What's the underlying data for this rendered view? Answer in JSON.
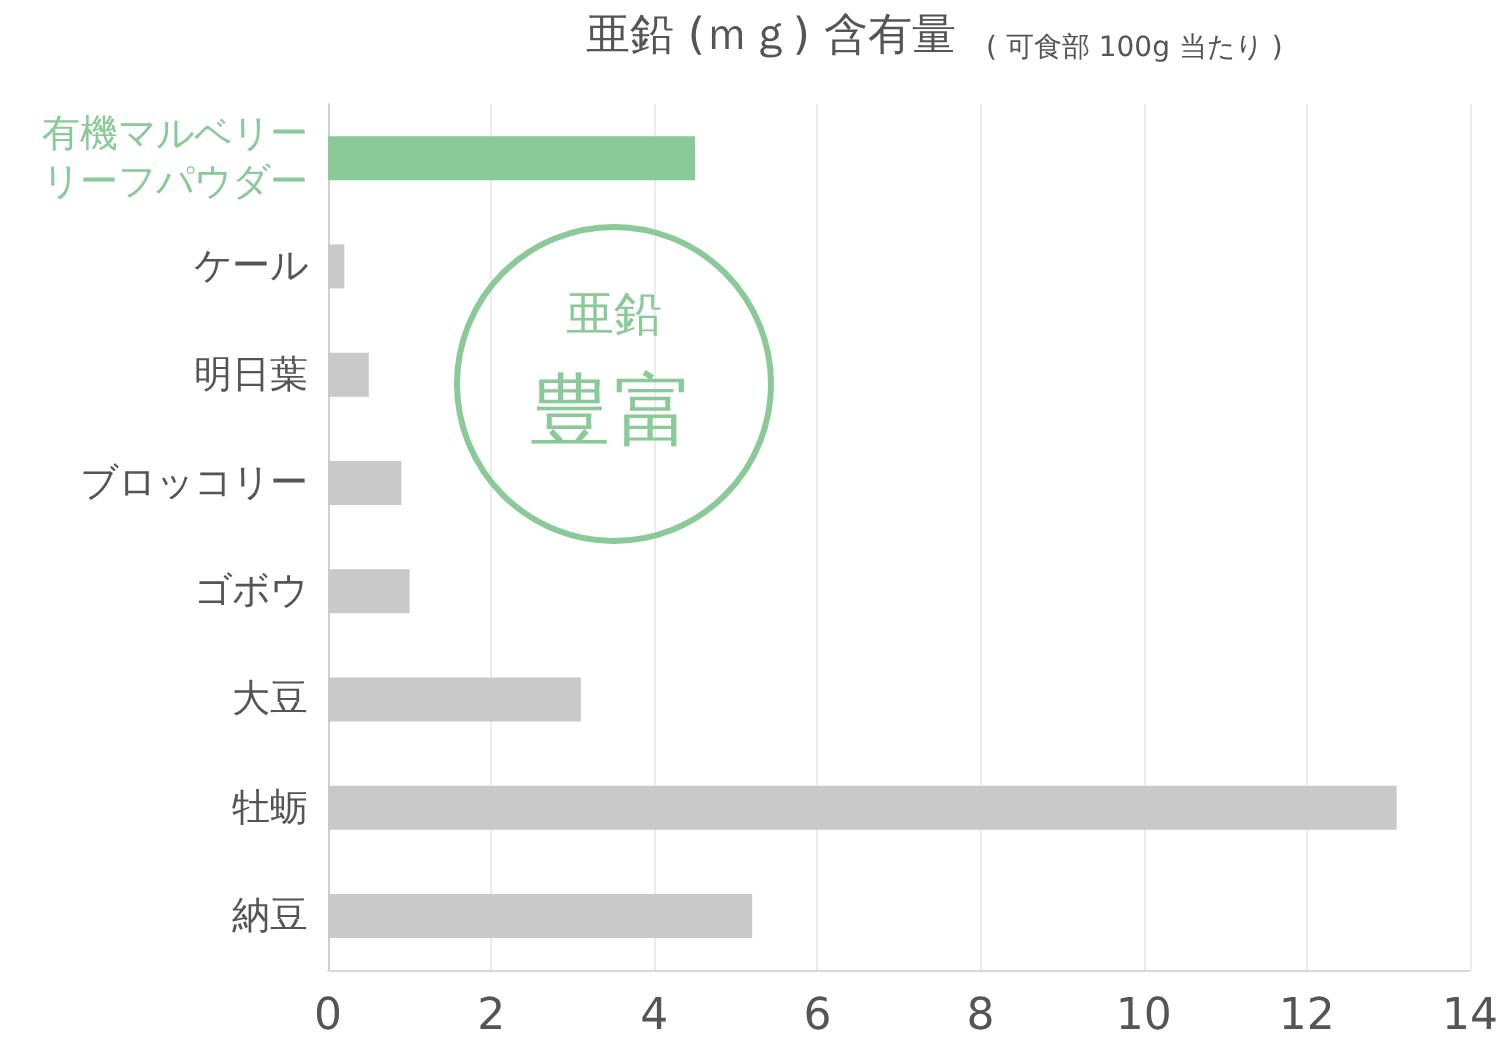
{
  "chart_data": {
    "type": "bar",
    "orientation": "horizontal",
    "title": "亜鉛 (ｍｇ) 含有量",
    "subtitle": "( 可食部 100g 当たり )",
    "categories": [
      "有機マルベリーリーフパウダー",
      "ケール",
      "明日葉",
      "ブロッコリー",
      "ゴボウ",
      "大豆",
      "牡蛎",
      "納豆"
    ],
    "values": [
      4.5,
      0.2,
      0.5,
      0.9,
      1.0,
      3.1,
      13.1,
      5.2
    ],
    "colors": [
      "#8ac998",
      "#c9c9c9",
      "#c9c9c9",
      "#c9c9c9",
      "#c9c9c9",
      "#c9c9c9",
      "#c9c9c9",
      "#c9c9c9"
    ],
    "xlim": [
      0,
      14
    ],
    "xticks": [
      0,
      2,
      4,
      6,
      8,
      10,
      12,
      14
    ],
    "grid": "x",
    "annotations": [
      "亜鉛",
      "豊富"
    ]
  }
}
